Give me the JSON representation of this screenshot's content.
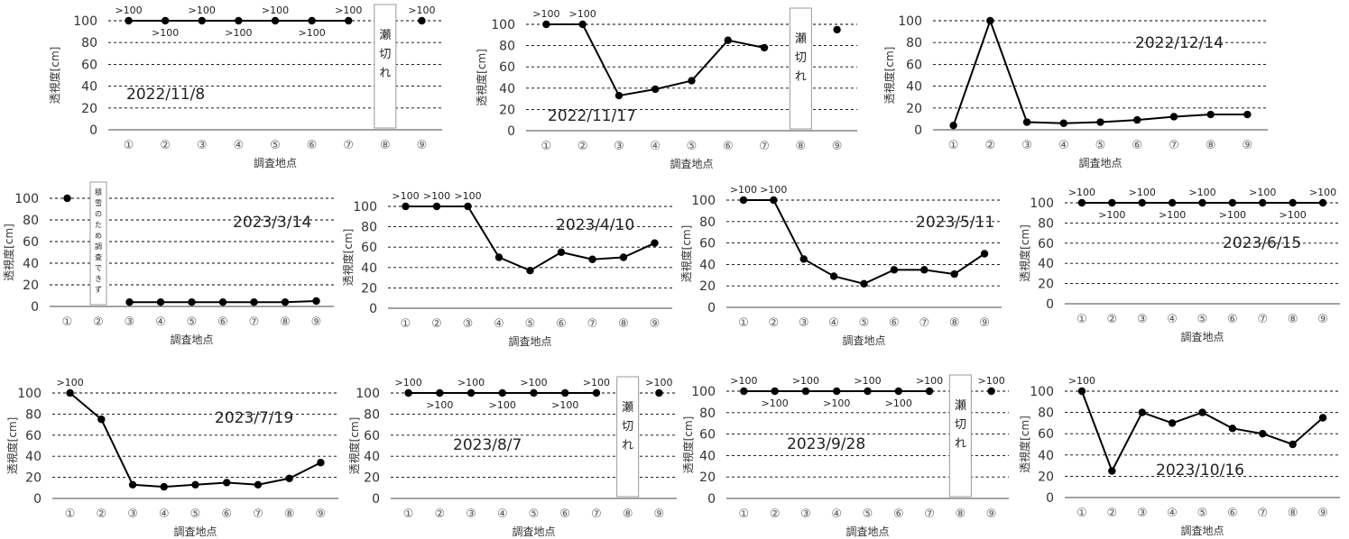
{
  "chart_data": [
    {
      "type": "line",
      "title": "2022/11/8",
      "xlabel": "調査地点",
      "ylabel": "透視度[cm]",
      "ylim": [
        0,
        100
      ],
      "categories": [
        "①",
        "②",
        "③",
        "④",
        "⑤",
        "⑥",
        "⑦",
        "⑧",
        "⑨"
      ],
      "values": [
        100,
        100,
        100,
        100,
        100,
        100,
        100,
        null,
        100
      ],
      "labels": [
        ">100",
        ">100",
        ">100",
        ">100",
        ">100",
        ">100",
        ">100",
        null,
        ">100"
      ],
      "notes": [
        {
          "at": 8,
          "text": "瀬切れ"
        }
      ]
    },
    {
      "type": "line",
      "title": "2022/11/17",
      "xlabel": "調査地点",
      "ylabel": "透視度[cm]",
      "ylim": [
        0,
        100
      ],
      "categories": [
        "①",
        "②",
        "③",
        "④",
        "⑤",
        "⑥",
        "⑦",
        "⑧",
        "⑨"
      ],
      "values": [
        100,
        100,
        33,
        39,
        47,
        85,
        78,
        null,
        95
      ],
      "labels": [
        ">100",
        ">100",
        null,
        null,
        null,
        null,
        null,
        null,
        null
      ],
      "notes": [
        {
          "at": 8,
          "text": "瀬切れ"
        }
      ]
    },
    {
      "type": "line",
      "title": "2022/12/14",
      "xlabel": "調査地点",
      "ylabel": "透視度[cm]",
      "ylim": [
        0,
        100
      ],
      "categories": [
        "①",
        "②",
        "③",
        "④",
        "⑤",
        "⑥",
        "⑦",
        "⑧",
        "⑨"
      ],
      "values": [
        4,
        100,
        7,
        6,
        7,
        9,
        12,
        14,
        14
      ],
      "labels": [
        null,
        null,
        null,
        null,
        null,
        null,
        null,
        null,
        null
      ],
      "notes": []
    },
    {
      "type": "line",
      "title": "2023/3/14",
      "xlabel": "調査地点",
      "ylabel": "透視度[cm]",
      "ylim": [
        0,
        100
      ],
      "categories": [
        "①",
        "②",
        "③",
        "④",
        "⑤",
        "⑥",
        "⑦",
        "⑧",
        "⑨"
      ],
      "values": [
        100,
        null,
        4,
        4,
        4,
        4,
        4,
        4,
        5
      ],
      "labels": [
        null,
        null,
        null,
        null,
        null,
        null,
        null,
        null,
        null
      ],
      "notes": [
        {
          "at": 2,
          "text": "積雪のため調査できず"
        }
      ]
    },
    {
      "type": "line",
      "title": "2023/4/10",
      "xlabel": "調査地点",
      "ylabel": "透視度[cm]",
      "ylim": [
        0,
        100
      ],
      "categories": [
        "①",
        "②",
        "③",
        "④",
        "⑤",
        "⑥",
        "⑦",
        "⑧",
        "⑨"
      ],
      "values": [
        100,
        100,
        100,
        50,
        37,
        55,
        48,
        50,
        64
      ],
      "labels": [
        ">100",
        ">100",
        ">100",
        null,
        null,
        null,
        null,
        null,
        null
      ],
      "notes": []
    },
    {
      "type": "line",
      "title": "2023/5/11",
      "xlabel": "調査地点",
      "ylabel": "透視度[cm]",
      "ylim": [
        0,
        100
      ],
      "categories": [
        "①",
        "②",
        "③",
        "④",
        "⑤",
        "⑥",
        "⑦",
        "⑧",
        "⑨"
      ],
      "values": [
        100,
        100,
        45,
        29,
        22,
        35,
        35,
        31,
        50
      ],
      "labels": [
        ">100",
        ">100",
        null,
        null,
        null,
        null,
        null,
        null,
        null
      ],
      "notes": []
    },
    {
      "type": "line",
      "title": "2023/6/15",
      "xlabel": "調査地点",
      "ylabel": "透視度[cm]",
      "ylim": [
        0,
        100
      ],
      "categories": [
        "①",
        "②",
        "③",
        "④",
        "⑤",
        "⑥",
        "⑦",
        "⑧",
        "⑨"
      ],
      "values": [
        100,
        100,
        100,
        100,
        100,
        100,
        100,
        100,
        100
      ],
      "labels": [
        ">100",
        ">100",
        ">100",
        ">100",
        ">100",
        ">100",
        ">100",
        ">100",
        ">100"
      ],
      "notes": []
    },
    {
      "type": "line",
      "title": "2023/7/19",
      "xlabel": "調査地点",
      "ylabel": "透視度[cm]",
      "ylim": [
        0,
        100
      ],
      "categories": [
        "①",
        "②",
        "③",
        "④",
        "⑤",
        "⑥",
        "⑦",
        "⑧",
        "⑨"
      ],
      "values": [
        100,
        75,
        13,
        11,
        13,
        15,
        13,
        19,
        34
      ],
      "labels": [
        ">100",
        null,
        null,
        null,
        null,
        null,
        null,
        null,
        null
      ],
      "notes": []
    },
    {
      "type": "line",
      "title": "2023/8/7",
      "xlabel": "調査地点",
      "ylabel": "透視度[cm]",
      "ylim": [
        0,
        100
      ],
      "categories": [
        "①",
        "②",
        "③",
        "④",
        "⑤",
        "⑥",
        "⑦",
        "⑧",
        "⑨"
      ],
      "values": [
        100,
        100,
        100,
        100,
        100,
        100,
        100,
        null,
        100
      ],
      "labels": [
        ">100",
        ">100",
        ">100",
        ">100",
        ">100",
        ">100",
        ">100",
        null,
        ">100"
      ],
      "notes": [
        {
          "at": 8,
          "text": "瀬切れ"
        }
      ]
    },
    {
      "type": "line",
      "title": "2023/9/28",
      "xlabel": "調査地点",
      "ylabel": "透視度[cm]",
      "ylim": [
        0,
        100
      ],
      "categories": [
        "①",
        "②",
        "③",
        "④",
        "⑤",
        "⑥",
        "⑦",
        "⑧",
        "⑨"
      ],
      "values": [
        100,
        100,
        100,
        100,
        100,
        100,
        100,
        null,
        100
      ],
      "labels": [
        ">100",
        ">100",
        ">100",
        ">100",
        ">100",
        ">100",
        ">100",
        null,
        ">100"
      ],
      "notes": [
        {
          "at": 8,
          "text": "瀬切れ"
        }
      ]
    },
    {
      "type": "line",
      "title": "2023/10/16",
      "xlabel": "調査地点",
      "ylabel": "透視度[cm]",
      "ylim": [
        0,
        100
      ],
      "categories": [
        "①",
        "②",
        "③",
        "④",
        "⑤",
        "⑥",
        "⑦",
        "⑧",
        "⑨"
      ],
      "values": [
        100,
        25,
        80,
        70,
        80,
        65,
        60,
        50,
        75
      ],
      "labels": [
        ">100",
        null,
        null,
        null,
        null,
        null,
        null,
        null,
        null
      ],
      "notes": []
    }
  ],
  "colors": {
    "line": "#000000",
    "grid": "#000000",
    "axis_text": "#555555",
    "note_border": "#999999"
  }
}
